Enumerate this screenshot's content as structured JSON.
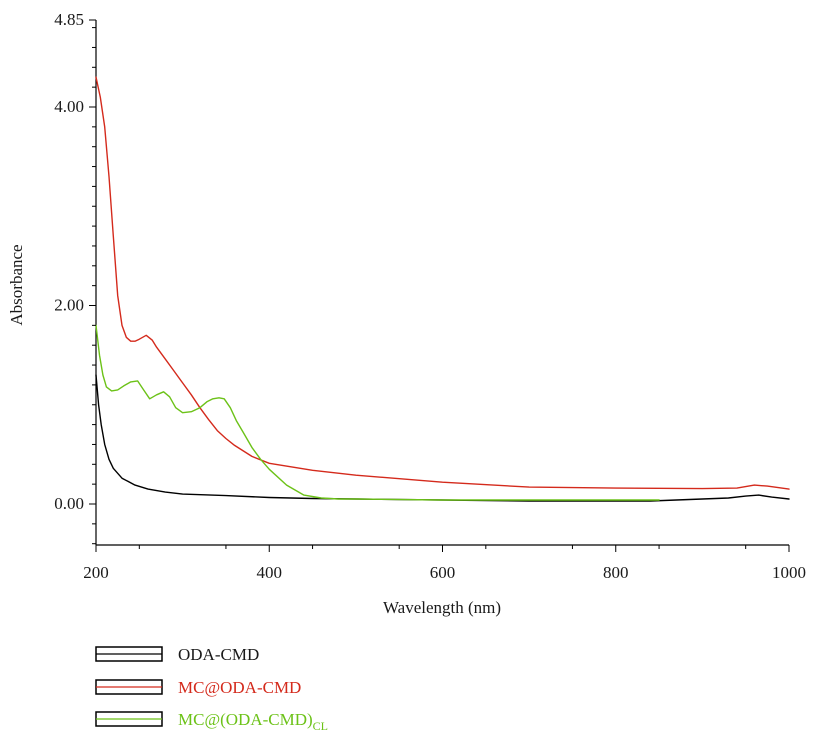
{
  "chart_data": {
    "type": "line",
    "xlabel": "Wavelength (nm)",
    "ylabel": "Absorbance",
    "xlim": [
      200,
      1000
    ],
    "ylim": [
      -0.45,
      4.85
    ],
    "x_ticks": [
      "200",
      "400",
      "600",
      "800",
      "1000"
    ],
    "y_ticks": [
      "0.00",
      "2.00",
      "4.00",
      "4.85"
    ],
    "grid": false,
    "legend_position": "bottom-left",
    "series": [
      {
        "name": "ODA-CMD",
        "color": "#000000",
        "x": [
          200,
          203,
          206,
          210,
          215,
          220,
          230,
          245,
          260,
          280,
          300,
          350,
          400,
          450,
          500,
          600,
          700,
          800,
          840,
          900,
          930,
          950,
          965,
          980,
          1000
        ],
        "y": [
          1.3,
          1.0,
          0.8,
          0.6,
          0.45,
          0.36,
          0.26,
          0.19,
          0.15,
          0.12,
          0.1,
          0.085,
          0.065,
          0.055,
          0.05,
          0.04,
          0.03,
          0.03,
          0.03,
          0.05,
          0.06,
          0.08,
          0.09,
          0.07,
          0.05
        ]
      },
      {
        "name": "MC@ODA-CMD",
        "color": "#d42a1c",
        "x": [
          200,
          205,
          210,
          215,
          220,
          225,
          230,
          235,
          240,
          245,
          250,
          258,
          265,
          270,
          280,
          290,
          300,
          310,
          320,
          330,
          340,
          350,
          360,
          380,
          400,
          450,
          500,
          600,
          700,
          800,
          900,
          940,
          960,
          975,
          1000
        ],
        "y": [
          4.3,
          4.1,
          3.8,
          3.3,
          2.7,
          2.1,
          1.8,
          1.68,
          1.64,
          1.64,
          1.66,
          1.7,
          1.65,
          1.58,
          1.46,
          1.34,
          1.22,
          1.1,
          0.97,
          0.85,
          0.74,
          0.66,
          0.59,
          0.48,
          0.41,
          0.34,
          0.29,
          0.22,
          0.17,
          0.16,
          0.155,
          0.16,
          0.19,
          0.18,
          0.15
        ]
      },
      {
        "name": "MC@(ODA-CMD)",
        "name_sub": "CL",
        "color": "#6cc218",
        "x": [
          200,
          204,
          208,
          212,
          218,
          225,
          232,
          240,
          248,
          255,
          262,
          270,
          278,
          285,
          292,
          300,
          310,
          320,
          328,
          335,
          342,
          348,
          355,
          362,
          370,
          380,
          390,
          400,
          420,
          440,
          460,
          480,
          500,
          600,
          700,
          800,
          850
        ],
        "y": [
          1.8,
          1.5,
          1.3,
          1.18,
          1.14,
          1.15,
          1.19,
          1.23,
          1.24,
          1.15,
          1.06,
          1.1,
          1.13,
          1.08,
          0.97,
          0.92,
          0.93,
          0.97,
          1.03,
          1.06,
          1.07,
          1.06,
          0.97,
          0.84,
          0.72,
          0.57,
          0.45,
          0.35,
          0.19,
          0.09,
          0.06,
          0.05,
          0.05,
          0.04,
          0.04,
          0.04,
          0.04
        ]
      }
    ]
  }
}
